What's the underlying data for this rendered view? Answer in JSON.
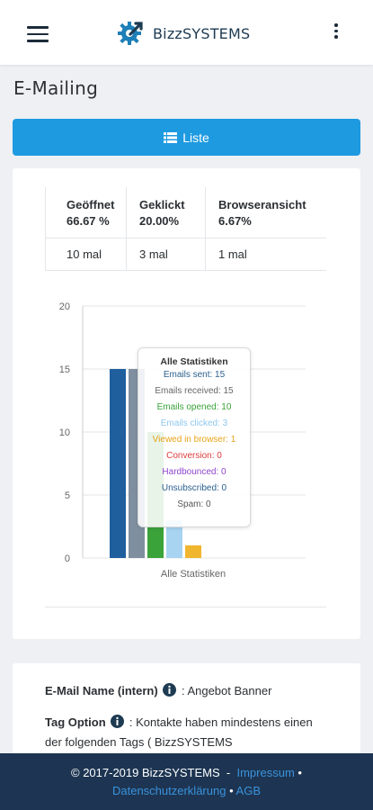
{
  "header": {
    "brand": "BizzSYSTEMS",
    "menu_icon": "hamburger-menu-icon",
    "more_icon": "vertical-dots-icon"
  },
  "page": {
    "title": "E-Mailing"
  },
  "list_button": {
    "label": "Liste",
    "icon": "list-icon",
    "color": "#1e9ae0"
  },
  "stats": {
    "columns": [
      {
        "name": "Geöffnet",
        "percent": "66.67 %",
        "count": "10 mal"
      },
      {
        "name": "Geklickt",
        "percent": "20.00%",
        "count": "3 mal"
      },
      {
        "name": "Browseransicht",
        "percent": "6.67%",
        "count": "1 mal"
      }
    ]
  },
  "chart_data": {
    "type": "bar",
    "categories": [
      "Alle Statistiken"
    ],
    "ylim": [
      0,
      20
    ],
    "yticks": [
      0,
      5,
      10,
      15,
      20
    ],
    "grid": true,
    "series": [
      {
        "name": "Emails sent",
        "values": [
          15
        ],
        "color": "#1f5f9e"
      },
      {
        "name": "Emails received",
        "values": [
          15
        ],
        "color": "#7f8fa0"
      },
      {
        "name": "Emails opened",
        "values": [
          10
        ],
        "color": "#3aa33a"
      },
      {
        "name": "Emails clicked",
        "values": [
          3
        ],
        "color": "#a8d4f2"
      },
      {
        "name": "Viewed in browser",
        "values": [
          1
        ],
        "color": "#f0b62e"
      },
      {
        "name": "Conversion",
        "values": [
          0
        ],
        "color": "#e03c3c"
      },
      {
        "name": "Hardbounced",
        "values": [
          0
        ],
        "color": "#8e44cf"
      },
      {
        "name": "Unsubscribed",
        "values": [
          0
        ],
        "color": "#2a5f8f"
      },
      {
        "name": "Spam",
        "values": [
          0
        ],
        "color": "#666666"
      }
    ]
  },
  "tooltip": {
    "title": "Alle Statistiken",
    "lines": [
      {
        "text": "Emails sent: 15",
        "color": "#2a5f8f"
      },
      {
        "text": "Emails received: 15",
        "color": "#666666"
      },
      {
        "text": "Emails opened: 10",
        "color": "#3aa33a"
      },
      {
        "text": "Emails clicked: 3",
        "color": "#8ec8ee"
      },
      {
        "text": "Viewed in browser: 1",
        "color": "#e8a317"
      },
      {
        "text": "Conversion: 0",
        "color": "#e03c3c"
      },
      {
        "text": "Hardbounced: 0",
        "color": "#8e44cf"
      },
      {
        "text": "Unsubscribed: 0",
        "color": "#2a5f8f"
      },
      {
        "text": "Spam: 0",
        "color": "#555555"
      }
    ]
  },
  "details": {
    "name_label": "E-Mail Name (intern)",
    "name_value": ": Angebot Banner",
    "tag_label": "Tag Option",
    "tag_value": ": Kontakte haben mindestens einen der folgenden Tags ( BizzSYSTEMS",
    "info_icon": "info-circle-icon"
  },
  "footer": {
    "copyright": "© 2017-2019 BizzSYSTEMS",
    "separator": "-",
    "links": [
      "Impressum",
      "Datenschutzerklärung",
      "AGB"
    ],
    "bullet": "•"
  }
}
